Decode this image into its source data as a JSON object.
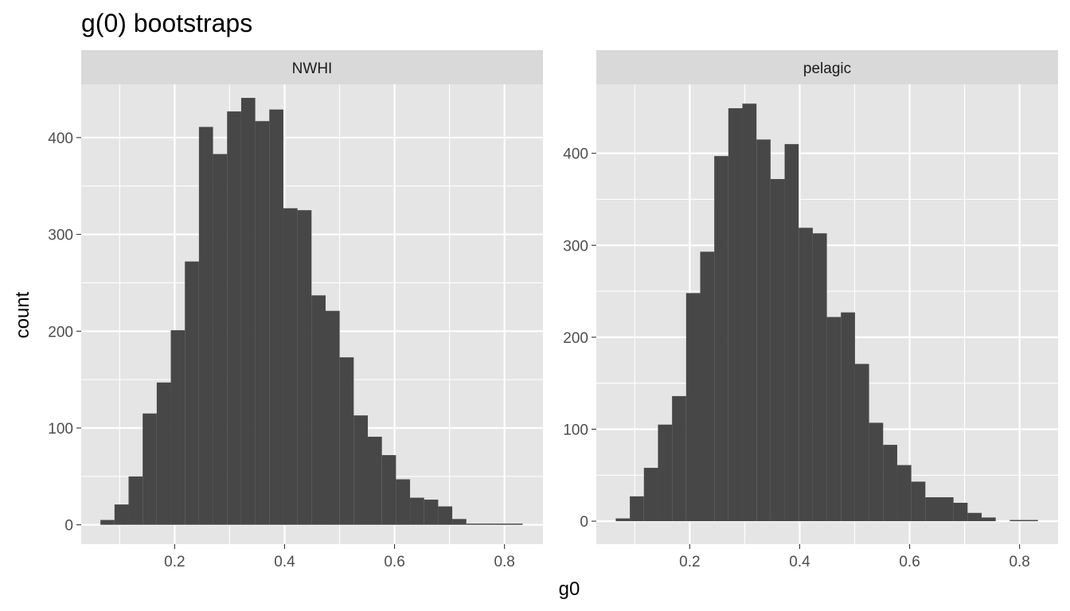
{
  "chart_data": {
    "type": "bar",
    "subtype": "histogram",
    "title": "g(0) bootstraps",
    "xlabel": "g0",
    "ylabel": "count",
    "xlim": [
      0.03,
      0.87
    ],
    "x_ticks": [
      "0.2",
      "0.4",
      "0.6",
      "0.8"
    ],
    "x_tick_values": [
      0.2,
      0.4,
      0.6,
      0.8
    ],
    "bin_width": 0.0256,
    "grid": true,
    "colors": {
      "panel_bg": "#e5e5e5",
      "strip_bg": "#d9d9d9",
      "bar_fill": "#474747",
      "grid_major": "#ffffff",
      "tick_text": "#4d4d4d"
    },
    "panels": [
      {
        "facet": "NWHI",
        "ylim": [
          -20,
          455
        ],
        "y_ticks": [
          "0",
          "100",
          "200",
          "300",
          "400"
        ],
        "y_tick_values": [
          0,
          100,
          200,
          300,
          400
        ],
        "bin_starts": [
          0.065,
          0.0906,
          0.1162,
          0.1418,
          0.1674,
          0.193,
          0.2186,
          0.2442,
          0.2698,
          0.2954,
          0.321,
          0.3466,
          0.3722,
          0.3978,
          0.4234,
          0.449,
          0.4746,
          0.5002,
          0.5258,
          0.5514,
          0.577,
          0.6026,
          0.6282,
          0.6538,
          0.6794,
          0.705,
          0.7306,
          0.7562,
          0.7818,
          0.8074
        ],
        "counts": [
          5,
          21,
          50,
          115,
          147,
          201,
          272,
          411,
          383,
          427,
          441,
          417,
          429,
          327,
          325,
          237,
          221,
          173,
          113,
          91,
          72,
          47,
          28,
          26,
          19,
          6,
          1,
          1,
          1,
          1
        ]
      },
      {
        "facet": "pelagic",
        "ylim": [
          -25,
          475
        ],
        "y_ticks": [
          "0",
          "100",
          "200",
          "300",
          "400"
        ],
        "y_tick_values": [
          0,
          100,
          200,
          300,
          400
        ],
        "bin_starts": [
          0.0654,
          0.091,
          0.1166,
          0.1422,
          0.1678,
          0.1934,
          0.219,
          0.2446,
          0.2702,
          0.2958,
          0.3214,
          0.347,
          0.3726,
          0.3982,
          0.4238,
          0.4494,
          0.475,
          0.5006,
          0.5262,
          0.5518,
          0.5774,
          0.603,
          0.6286,
          0.6542,
          0.6798,
          0.7054,
          0.731,
          0.7566,
          0.7822,
          0.8078
        ],
        "counts": [
          3,
          27,
          58,
          105,
          136,
          248,
          293,
          397,
          449,
          454,
          415,
          372,
          410,
          319,
          313,
          222,
          227,
          171,
          107,
          83,
          61,
          43,
          26,
          26,
          20,
          9,
          4,
          0,
          1,
          1
        ]
      }
    ]
  }
}
